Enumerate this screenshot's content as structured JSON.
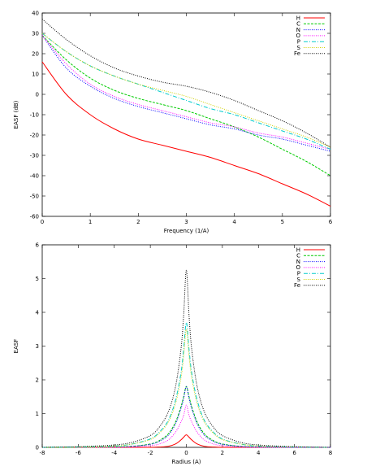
{
  "chart_data": [
    {
      "type": "line",
      "xlabel": "Frequency (1/A)",
      "ylabel": "EASF (dB)",
      "xlim": [
        0,
        6
      ],
      "ylim": [
        -60,
        40
      ],
      "xticks": [
        "0",
        "1",
        "2",
        "3",
        "4",
        "5",
        "6"
      ],
      "yticks": [
        "-60",
        "-50",
        "-40",
        "-30",
        "-20",
        "-10",
        "0",
        "10",
        "20",
        "30",
        "40"
      ],
      "legend_position": "top-right",
      "x": [
        0,
        0.5,
        1,
        1.5,
        2,
        2.5,
        3,
        3.5,
        4,
        4.5,
        5,
        5.5,
        6
      ],
      "series": [
        {
          "name": "H",
          "color": "#ff0000",
          "dash": "",
          "values": [
            16,
            0,
            -10,
            -17,
            -22,
            -25,
            -28,
            -31,
            -35,
            -39,
            -44,
            -49,
            -55
          ]
        },
        {
          "name": "C",
          "color": "#00cc00",
          "dash": "3,1.5",
          "values": [
            29,
            17,
            8,
            2,
            -2,
            -5,
            -8,
            -12,
            -16,
            -21,
            -27,
            -33,
            -40
          ]
        },
        {
          "name": "N",
          "color": "#0000ff",
          "dash": "1,1.5",
          "values": [
            29,
            13,
            4,
            -2,
            -6,
            -9,
            -12,
            -15,
            -17,
            -20,
            -22,
            -25,
            -28
          ]
        },
        {
          "name": "O",
          "color": "#ff00ff",
          "dash": "1,1.5",
          "values": [
            29,
            15,
            5,
            -1,
            -5,
            -8,
            -11,
            -14,
            -16,
            -19,
            -21,
            -24,
            -27
          ]
        },
        {
          "name": "P",
          "color": "#00cccc",
          "dash": "5,2,1,2",
          "values": [
            30,
            21,
            14,
            9,
            5,
            1,
            -3,
            -7,
            -10,
            -14,
            -18,
            -22,
            -27
          ]
        },
        {
          "name": "S",
          "color": "#d0d000",
          "dash": "1,1.5",
          "values": [
            30,
            21,
            14,
            9,
            5,
            2,
            -1,
            -5,
            -9,
            -13,
            -17,
            -21,
            -26
          ]
        },
        {
          "name": "Fe",
          "color": "#000000",
          "dash": "1,1.5",
          "values": [
            37,
            27,
            19,
            13,
            9,
            6,
            4,
            1,
            -3,
            -8,
            -13,
            -19,
            -26
          ]
        }
      ]
    },
    {
      "type": "line",
      "xlabel": "Radius (A)",
      "ylabel": "EASF",
      "xlim": [
        -8,
        8
      ],
      "ylim": [
        0,
        6
      ],
      "xticks": [
        "-8",
        "-6",
        "-4",
        "-2",
        "0",
        "2",
        "4",
        "6",
        "8"
      ],
      "yticks": [
        "0",
        "1",
        "2",
        "3",
        "4",
        "5",
        "6"
      ],
      "legend_position": "top-right",
      "x": [
        -8,
        -6,
        -4,
        -3,
        -2,
        -1.5,
        -1,
        -0.6,
        -0.3,
        -0.15,
        0,
        0.15,
        0.3,
        0.6,
        1,
        1.5,
        2,
        3,
        4,
        6,
        8
      ],
      "series": [
        {
          "name": "H",
          "color": "#ff0000",
          "dash": "",
          "values": [
            0,
            0,
            0,
            0,
            0,
            0.01,
            0.03,
            0.1,
            0.22,
            0.3,
            0.37,
            0.3,
            0.22,
            0.1,
            0.03,
            0.01,
            0,
            0,
            0,
            0,
            0
          ]
        },
        {
          "name": "C",
          "color": "#00cc00",
          "dash": "3,1.5",
          "values": [
            0,
            0,
            0.01,
            0.03,
            0.1,
            0.2,
            0.4,
            0.75,
            1.2,
            1.5,
            1.8,
            1.5,
            1.2,
            0.75,
            0.4,
            0.2,
            0.1,
            0.03,
            0.01,
            0,
            0
          ]
        },
        {
          "name": "N",
          "color": "#0000ff",
          "dash": "1,1.5",
          "values": [
            0,
            0,
            0.01,
            0.03,
            0.09,
            0.18,
            0.36,
            0.7,
            1.15,
            1.45,
            1.8,
            1.45,
            1.15,
            0.7,
            0.36,
            0.18,
            0.09,
            0.03,
            0.01,
            0,
            0
          ]
        },
        {
          "name": "O",
          "color": "#ff00ff",
          "dash": "1,1.5",
          "values": [
            0,
            0,
            0,
            0.01,
            0.05,
            0.1,
            0.22,
            0.45,
            0.75,
            0.95,
            1.25,
            0.95,
            0.75,
            0.45,
            0.22,
            0.1,
            0.05,
            0.01,
            0,
            0,
            0
          ]
        },
        {
          "name": "P",
          "color": "#00cccc",
          "dash": "5,2,1,2",
          "values": [
            0,
            0.01,
            0.04,
            0.1,
            0.25,
            0.45,
            0.8,
            1.4,
            2.2,
            2.9,
            3.7,
            2.9,
            2.2,
            1.4,
            0.8,
            0.45,
            0.25,
            0.1,
            0.04,
            0.01,
            0
          ]
        },
        {
          "name": "S",
          "color": "#d0d000",
          "dash": "1,1.5",
          "values": [
            0,
            0.01,
            0.04,
            0.1,
            0.23,
            0.42,
            0.75,
            1.3,
            2.05,
            2.7,
            3.5,
            2.7,
            2.05,
            1.3,
            0.75,
            0.42,
            0.23,
            0.1,
            0.04,
            0.01,
            0
          ]
        },
        {
          "name": "Fe",
          "color": "#000000",
          "dash": "1,1.5",
          "values": [
            0,
            0.02,
            0.07,
            0.15,
            0.35,
            0.6,
            1.05,
            1.8,
            2.9,
            3.9,
            5.25,
            3.9,
            2.9,
            1.8,
            1.05,
            0.6,
            0.35,
            0.15,
            0.07,
            0.02,
            0
          ]
        }
      ]
    }
  ]
}
